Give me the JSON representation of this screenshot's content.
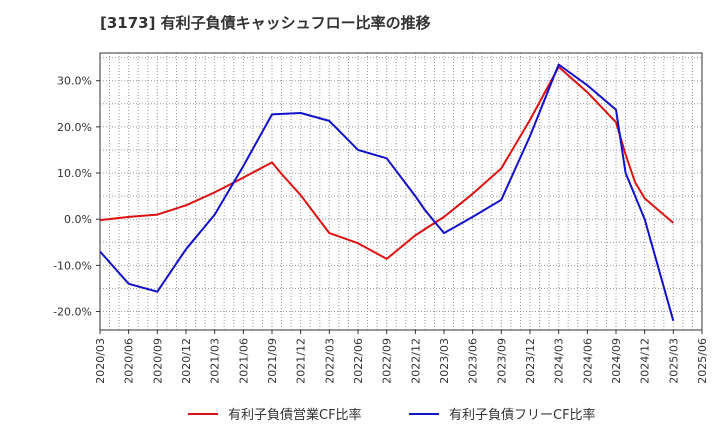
{
  "chart_data": {
    "type": "line",
    "title": "[3173]  有利子負債キャッシュフロー比率の推移",
    "xlabel": "",
    "ylabel": "",
    "categories": [
      "2020/03",
      "2020/06",
      "2020/09",
      "2020/12",
      "2021/03",
      "2021/06",
      "2021/09",
      "2021/12",
      "2022/03",
      "2022/06",
      "2022/09",
      "2022/12",
      "2023/03",
      "2023/06",
      "2023/09",
      "2023/12",
      "2024/03",
      "2024/06",
      "2024/09",
      "2024/12",
      "2025/03",
      "2025/06"
    ],
    "yticks": [
      30,
      20,
      10,
      0,
      -10,
      -20
    ],
    "ytick_labels": [
      "30.0%",
      "20.0%",
      "10.0%",
      "0.0%",
      "-10.0%",
      "-20.0%"
    ],
    "ylim": [
      -24,
      36
    ],
    "grid": true,
    "legend_position": "bottom",
    "series": [
      {
        "name": "有利子負債営業CF比率",
        "color": "#dd1111",
        "points": [
          [
            "2020/03",
            -0.2
          ],
          [
            "2020/06",
            0.5
          ],
          [
            "2020/09",
            1.0
          ],
          [
            "2020/12",
            3.0
          ],
          [
            "2021/03",
            5.8
          ],
          [
            "2021/06",
            9.0
          ],
          [
            "2021/09",
            12.3
          ],
          [
            "2021/10",
            9.8
          ],
          [
            "2021/12",
            5.2
          ],
          [
            "2022/03",
            -3.0
          ],
          [
            "2022/06",
            -5.2
          ],
          [
            "2022/09",
            -8.6
          ],
          [
            "2022/12",
            -3.5
          ],
          [
            "2023/03",
            0.5
          ],
          [
            "2023/06",
            5.5
          ],
          [
            "2023/09",
            11.0
          ],
          [
            "2023/12",
            21.5
          ],
          [
            "2024/03",
            33.0
          ],
          [
            "2024/06",
            27.5
          ],
          [
            "2024/09",
            21.0
          ],
          [
            "2024/10",
            14.0
          ],
          [
            "2024/11",
            8.0
          ],
          [
            "2024/12",
            4.5
          ],
          [
            "2025/03",
            -0.8
          ]
        ]
      },
      {
        "name": "有利子負債フリーCF比率",
        "color": "#1111cc",
        "points": [
          [
            "2020/03",
            -7.0
          ],
          [
            "2020/06",
            -14.0
          ],
          [
            "2020/09",
            -15.7
          ],
          [
            "2020/12",
            -6.5
          ],
          [
            "2021/03",
            1.0
          ],
          [
            "2021/06",
            11.5
          ],
          [
            "2021/09",
            22.7
          ],
          [
            "2021/12",
            23.0
          ],
          [
            "2022/03",
            21.3
          ],
          [
            "2022/06",
            15.0
          ],
          [
            "2022/09",
            13.2
          ],
          [
            "2022/12",
            5.0
          ],
          [
            "2023/01",
            2.0
          ],
          [
            "2023/03",
            -3.0
          ],
          [
            "2023/06",
            0.5
          ],
          [
            "2023/09",
            4.2
          ],
          [
            "2023/12",
            18.0
          ],
          [
            "2024/03",
            33.5
          ],
          [
            "2024/06",
            29.0
          ],
          [
            "2024/09",
            23.7
          ],
          [
            "2024/10",
            10.0
          ],
          [
            "2024/12",
            0.0
          ],
          [
            "2025/03",
            -22.0
          ]
        ]
      }
    ]
  }
}
